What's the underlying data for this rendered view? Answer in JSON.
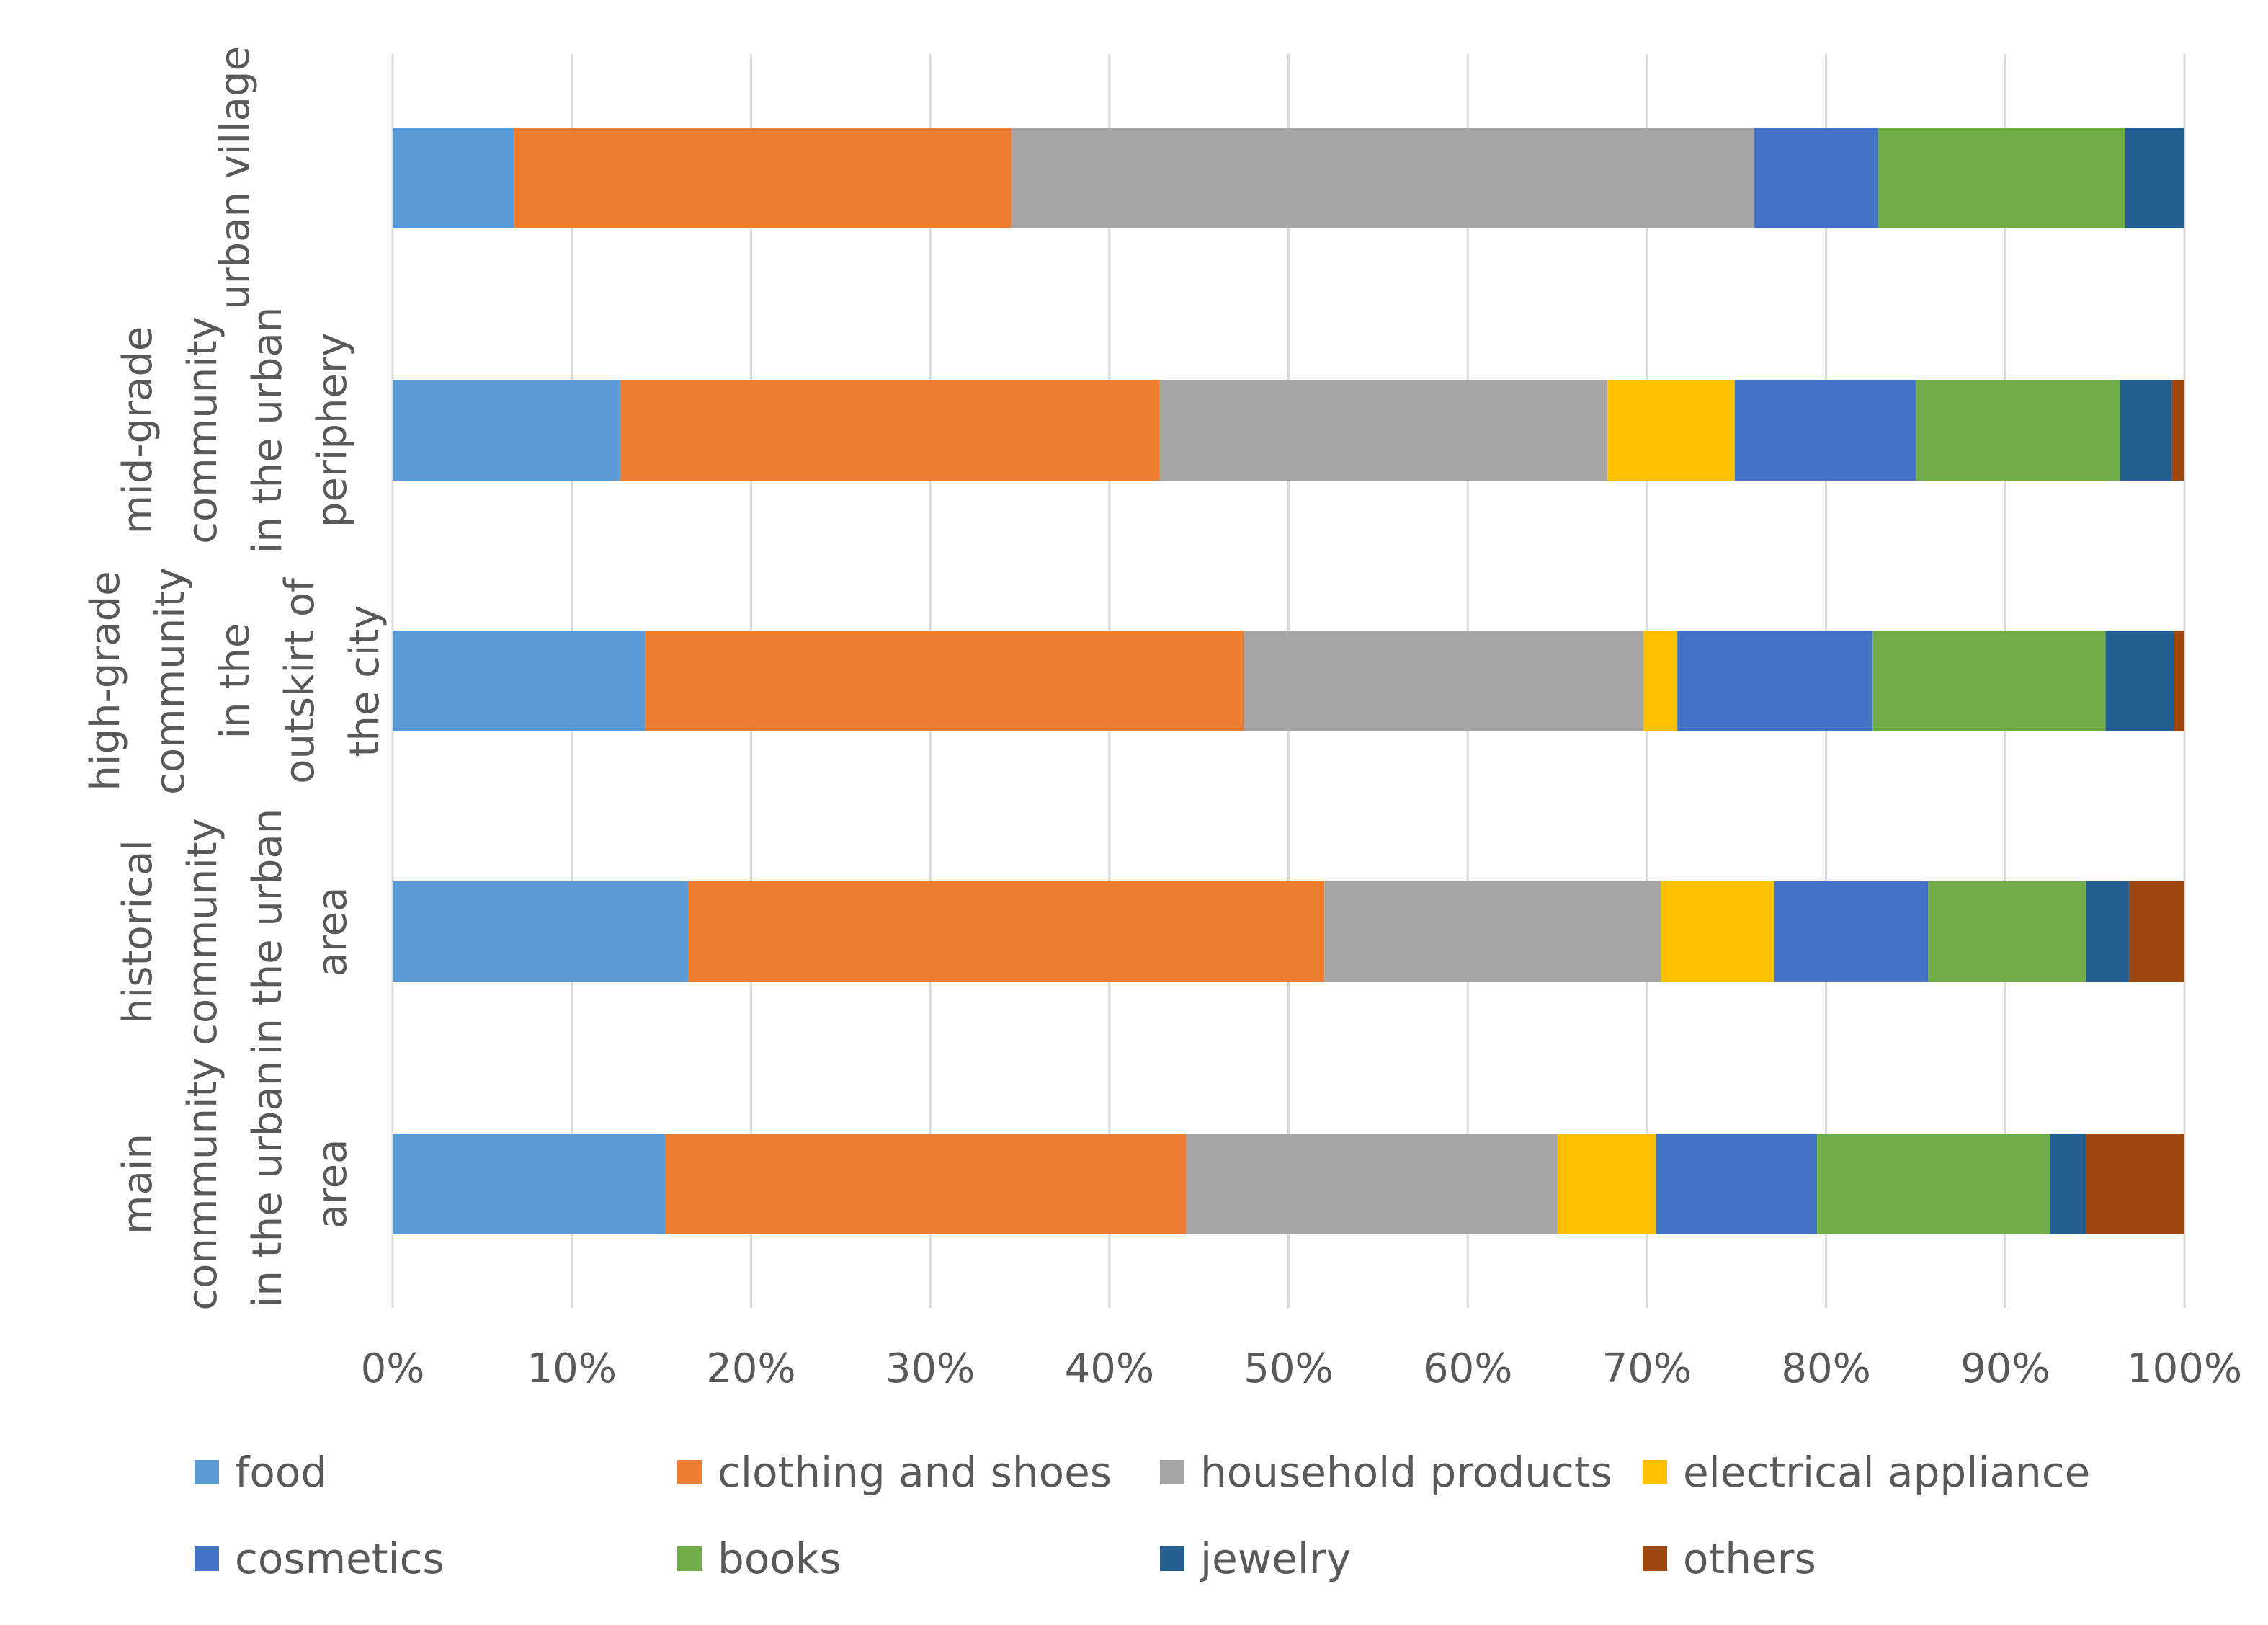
{
  "chart_data": {
    "type": "bar",
    "orientation": "horizontal",
    "stacked": "percent",
    "title": "",
    "xlabel": "",
    "ylabel": "",
    "xlim": [
      0,
      100
    ],
    "x_ticks": [
      "0%",
      "10%",
      "20%",
      "30%",
      "40%",
      "50%",
      "60%",
      "70%",
      "80%",
      "90%",
      "100%"
    ],
    "grid": "vertical",
    "legend_position": "bottom",
    "categories": [
      {
        "lines": [
          "urban village"
        ]
      },
      {
        "lines": [
          "mid-grade",
          "community",
          "in the urban",
          "periphery"
        ]
      },
      {
        "lines": [
          "high-grade",
          "community",
          "in the",
          "outskirt of",
          "the city"
        ]
      },
      {
        "lines": [
          "historical",
          "community",
          "in the urban",
          "area"
        ]
      },
      {
        "lines": [
          "main",
          "conmmunity",
          "in the urban",
          "area"
        ]
      }
    ],
    "series": [
      {
        "name": "food",
        "color": "#5B9BD5",
        "values": [
          6.8,
          12.7,
          14.1,
          16.5,
          15.2
        ]
      },
      {
        "name": "clothing and shoes",
        "color": "#ED7D31",
        "values": [
          27.7,
          30.1,
          33.4,
          35.5,
          29.1
        ]
      },
      {
        "name": "household products",
        "color": "#A5A5A5",
        "values": [
          41.5,
          25.0,
          22.3,
          18.8,
          20.7
        ]
      },
      {
        "name": "electrical appliance",
        "color": "#FFC000",
        "values": [
          0,
          7.1,
          1.9,
          6.3,
          5.5
        ]
      },
      {
        "name": "cosmetics",
        "color": "#4472C4",
        "values": [
          6.9,
          10.1,
          10.9,
          8.6,
          9.0
        ]
      },
      {
        "name": "books",
        "color": "#70AD47",
        "values": [
          13.8,
          11.4,
          13.0,
          8.8,
          13.0
        ]
      },
      {
        "name": "jewelry",
        "color": "#255E91",
        "values": [
          3.3,
          2.9,
          3.8,
          2.4,
          2.0
        ]
      },
      {
        "name": "others",
        "color": "#9E480E",
        "values": [
          0,
          0.7,
          0.6,
          3.1,
          5.5
        ]
      }
    ]
  }
}
